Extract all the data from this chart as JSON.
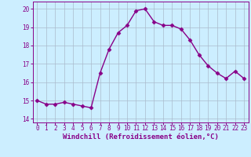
{
  "x": [
    0,
    1,
    2,
    3,
    4,
    5,
    6,
    7,
    8,
    9,
    10,
    11,
    12,
    13,
    14,
    15,
    16,
    17,
    18,
    19,
    20,
    21,
    22,
    23
  ],
  "y": [
    15.0,
    14.8,
    14.8,
    14.9,
    14.8,
    14.7,
    14.6,
    16.5,
    17.8,
    18.7,
    19.1,
    19.9,
    20.0,
    19.3,
    19.1,
    19.1,
    18.9,
    18.3,
    17.5,
    16.9,
    16.5,
    16.2,
    16.6,
    16.2
  ],
  "line_color": "#880088",
  "marker": "D",
  "marker_size": 2.5,
  "bg_color": "#cceeff",
  "grid_color": "#aabbcc",
  "xlabel": "Windchill (Refroidissement éolien,°C)",
  "xlabel_color": "#880088",
  "tick_color": "#880088",
  "spine_color": "#880088",
  "ylim": [
    13.8,
    20.4
  ],
  "xlim": [
    -0.5,
    23.5
  ],
  "yticks": [
    14,
    15,
    16,
    17,
    18,
    19,
    20
  ],
  "xticks": [
    0,
    1,
    2,
    3,
    4,
    5,
    6,
    7,
    8,
    9,
    10,
    11,
    12,
    13,
    14,
    15,
    16,
    17,
    18,
    19,
    20,
    21,
    22,
    23
  ],
  "xtick_labels": [
    "0",
    "1",
    "2",
    "3",
    "4",
    "5",
    "6",
    "7",
    "8",
    "9",
    "10",
    "11",
    "12",
    "13",
    "14",
    "15",
    "16",
    "17",
    "18",
    "19",
    "20",
    "21",
    "22",
    "23"
  ],
  "ytick_labels": [
    "14",
    "15",
    "16",
    "17",
    "18",
    "19",
    "20"
  ],
  "tick_fontsize": 5.5,
  "xlabel_fontsize": 6.5,
  "linewidth": 1.0
}
